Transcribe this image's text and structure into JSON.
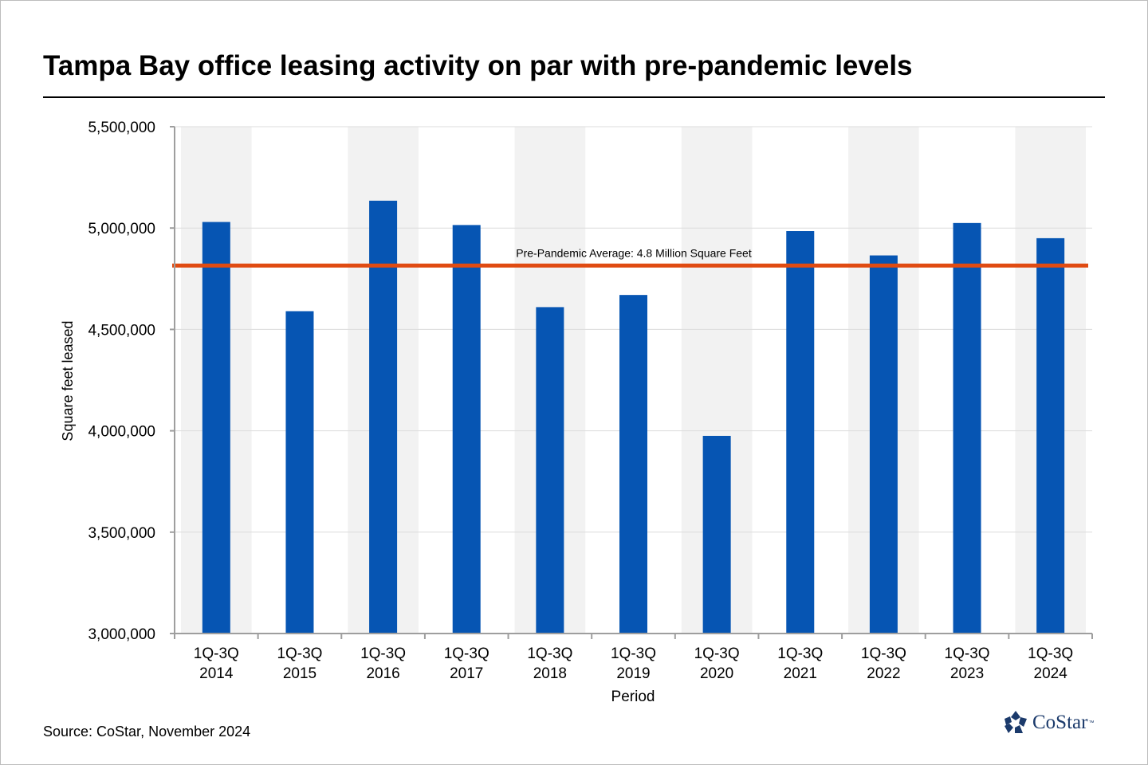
{
  "title": "Tampa Bay office leasing activity on par with pre-pandemic levels",
  "source": "Source: CoStar, November 2024",
  "brand": {
    "name": "CoStar",
    "trademark": "™",
    "color": "#1b3a6b"
  },
  "chart_data": {
    "type": "bar",
    "xlabel": "Period",
    "ylabel": "Square feet leased",
    "ylim": [
      3000000,
      5500000
    ],
    "yticks": [
      3000000,
      3500000,
      4000000,
      4500000,
      5000000,
      5500000
    ],
    "ytick_labels": [
      "3,000,000",
      "3,500,000",
      "4,000,000",
      "4,500,000",
      "5,000,000",
      "5,500,000"
    ],
    "categories": [
      [
        "1Q-3Q",
        "2014"
      ],
      [
        "1Q-3Q",
        "2015"
      ],
      [
        "1Q-3Q",
        "2016"
      ],
      [
        "1Q-3Q",
        "2017"
      ],
      [
        "1Q-3Q",
        "2018"
      ],
      [
        "1Q-3Q",
        "2019"
      ],
      [
        "1Q-3Q",
        "2020"
      ],
      [
        "1Q-3Q",
        "2021"
      ],
      [
        "1Q-3Q",
        "2022"
      ],
      [
        "1Q-3Q",
        "2023"
      ],
      [
        "1Q-3Q",
        "2024"
      ]
    ],
    "values": [
      5030000,
      4590000,
      5135000,
      5015000,
      4610000,
      4670000,
      3975000,
      4985000,
      4865000,
      5025000,
      4950000
    ],
    "bar_color": "#0655b3",
    "band_color": "#f2f2f2",
    "reference_line": {
      "value": 4815000,
      "label": "Pre-Pandemic Average: 4.8 Million Square Feet",
      "color": "#e04b12"
    },
    "grid": true,
    "legend": "none"
  }
}
